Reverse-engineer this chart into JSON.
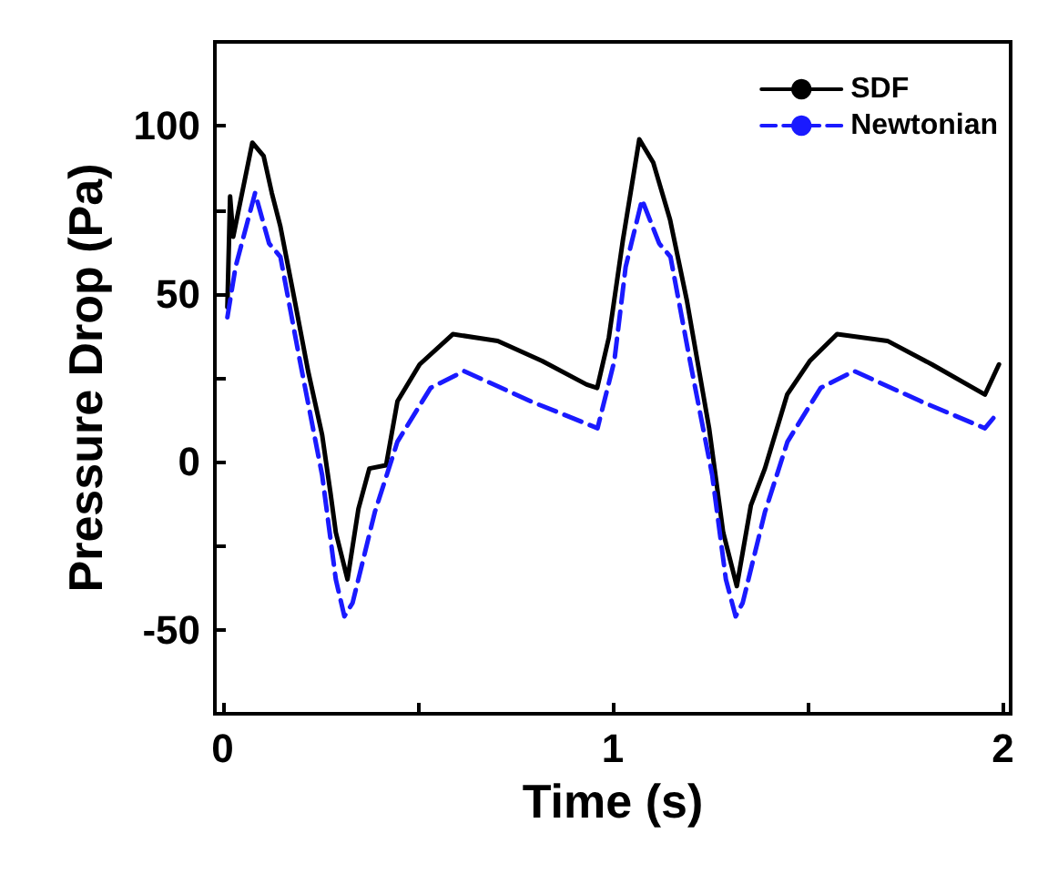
{
  "chart_data": {
    "type": "line",
    "xlabel": "Time (s)",
    "ylabel": "Pressure Drop (Pa)",
    "xlim": [
      -0.02,
      2.02
    ],
    "ylim": [
      -75,
      125
    ],
    "xticks": [
      0,
      {
        "value": 0.5,
        "label": null
      },
      1,
      {
        "value": 1.5,
        "label": null
      },
      2
    ],
    "yticks": [
      -50,
      {
        "value": -25,
        "label": null
      },
      0,
      {
        "value": 25,
        "label": null
      },
      50,
      {
        "value": 75,
        "label": null
      },
      100
    ],
    "grid": false,
    "legend": "top right",
    "marker": "none",
    "series": [
      {
        "name": "SDF",
        "color": "#000000",
        "line_style": "solid",
        "x": [
          0.012,
          0.019,
          0.027,
          0.041,
          0.076,
          0.105,
          0.126,
          0.148,
          0.183,
          0.219,
          0.255,
          0.276,
          0.29,
          0.32,
          0.348,
          0.376,
          0.419,
          0.448,
          0.505,
          0.59,
          0.705,
          0.819,
          0.933,
          0.96,
          0.99,
          1.026,
          1.068,
          1.104,
          1.147,
          1.19,
          1.247,
          1.283,
          1.318,
          1.354,
          1.39,
          1.447,
          1.505,
          1.575,
          1.704,
          1.818,
          1.954,
          1.99
        ],
        "values": [
          46,
          79,
          67,
          75,
          95,
          91,
          80,
          70,
          49,
          27,
          8,
          -9,
          -21,
          -35,
          -14,
          -2,
          -1,
          18,
          29,
          38,
          36,
          30,
          23,
          22,
          37,
          66,
          96,
          89,
          72,
          48,
          10,
          -21,
          -37,
          -13,
          -2,
          20,
          30,
          38,
          36,
          29,
          20,
          29
        ]
      },
      {
        "name": "Newtonian",
        "color": "#1a1aff",
        "line_style": "dashed",
        "x": [
          0.012,
          0.033,
          0.083,
          0.119,
          0.148,
          0.198,
          0.255,
          0.29,
          0.312,
          0.333,
          0.39,
          0.448,
          0.533,
          0.619,
          0.79,
          0.961,
          1.004,
          1.033,
          1.075,
          1.119,
          1.148,
          1.198,
          1.255,
          1.29,
          1.315,
          1.333,
          1.39,
          1.448,
          1.533,
          1.619,
          1.79,
          1.954,
          1.99
        ],
        "values": [
          43,
          58,
          80,
          65,
          61,
          30,
          -4,
          -35,
          -46,
          -42,
          -15,
          6,
          22,
          27,
          18,
          10,
          30,
          58,
          78,
          65,
          61,
          30,
          -4,
          -35,
          -46,
          -42,
          -15,
          6,
          22,
          27,
          18,
          10,
          15
        ]
      }
    ]
  }
}
